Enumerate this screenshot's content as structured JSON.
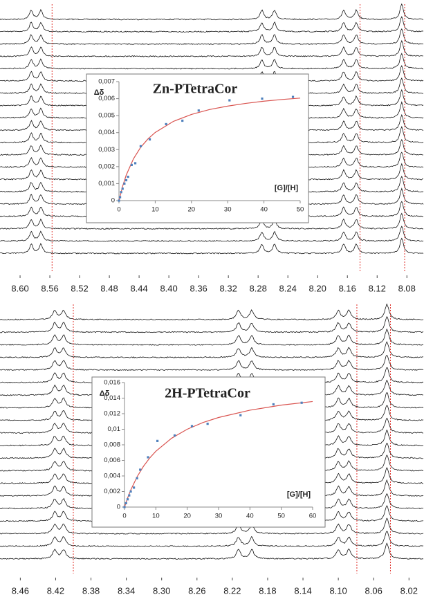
{
  "chart_data": [
    {
      "type": "spectra",
      "xlim": [
        8.627,
        8.057
      ],
      "xticks": [
        {
          "value": 8.6,
          "label": "8.60"
        },
        8.56,
        8.52,
        8.48,
        8.44,
        {
          "value": 8.4,
          "label": "8.40"
        },
        8.36,
        8.32,
        8.28,
        8.24,
        {
          "value": 8.2,
          "label": "8.20"
        },
        8.16,
        8.12,
        8.08
      ],
      "peaks": [
        8.585,
        8.572,
        8.275,
        8.258,
        8.165,
        8.148,
        8.087
      ],
      "reference_lines": [
        8.557,
        8.143,
        8.083
      ],
      "color": "#111111",
      "reference_color": "#e0302a"
    },
    {
      "type": "scatter",
      "title": "Zn-PTetraCor",
      "ylabel": "Δδ",
      "xlabel": "[G]/[H]",
      "xlim": [
        0,
        50
      ],
      "xticks": [
        0,
        10,
        20,
        30,
        40,
        50
      ],
      "ylim": [
        0,
        0.007
      ],
      "yticks": [
        0,
        {
          "value": 0.001,
          "label": "0,001"
        },
        {
          "value": 0.002,
          "label": "0,002"
        },
        {
          "value": 0.003,
          "label": "0,003"
        },
        {
          "value": 0.004,
          "label": "0,004"
        },
        {
          "value": 0.005,
          "label": "0,005"
        },
        {
          "value": 0.006,
          "label": "0,006"
        },
        {
          "value": 0.007,
          "label": "0,007"
        }
      ],
      "points": {
        "color": "#4f81bd",
        "x": [
          0,
          0.3,
          0.6,
          1,
          1.5,
          2,
          2.5,
          3.5,
          4.5,
          6,
          8.5,
          13,
          17.5,
          22,
          30.5,
          39.5,
          48
        ],
        "values": [
          0,
          0.0002,
          0.0005,
          0.0007,
          0.001,
          0.0012,
          0.0014,
          0.0021,
          0.0022,
          0.0032,
          0.0036,
          0.0045,
          0.0047,
          0.0053,
          0.0059,
          0.006,
          0.0061
        ]
      },
      "fit": {
        "color": "#d9534f",
        "x": [
          0,
          1,
          2,
          4,
          6,
          8,
          10,
          15,
          20,
          25,
          30,
          35,
          40,
          45,
          50
        ],
        "values": [
          0,
          0.00084,
          0.0015,
          0.00246,
          0.00314,
          0.00363,
          0.00401,
          0.00466,
          0.00507,
          0.00536,
          0.00556,
          0.00572,
          0.00585,
          0.00595,
          0.00603
        ]
      }
    },
    {
      "type": "spectra",
      "xlim": [
        8.483,
        8.003
      ],
      "xticks": [
        8.46,
        8.42,
        8.38,
        8.34,
        {
          "value": 8.3,
          "label": "8.30"
        },
        8.26,
        8.22,
        8.18,
        8.14,
        {
          "value": 8.1,
          "label": "8.10"
        },
        8.06,
        8.02
      ],
      "peaks": [
        8.421,
        8.411,
        8.213,
        8.198,
        8.1,
        8.088,
        8.045
      ],
      "reference_lines": [
        8.4,
        8.079,
        8.041
      ],
      "color": "#111111",
      "reference_color": "#e0302a"
    },
    {
      "type": "scatter",
      "title": "2H-PTetraCor",
      "ylabel": "Δδ",
      "xlabel": "[G]/[H]",
      "xlim": [
        0,
        60
      ],
      "xticks": [
        0,
        10,
        20,
        30,
        40,
        50,
        60
      ],
      "ylim": [
        0,
        0.016
      ],
      "yticks": [
        0,
        {
          "value": 0.002,
          "label": "0,002"
        },
        {
          "value": 0.004,
          "label": "0,004"
        },
        {
          "value": 0.006,
          "label": "0,006"
        },
        {
          "value": 0.008,
          "label": "0,008"
        },
        {
          "value": 0.01,
          "label": "0,01"
        },
        {
          "value": 0.012,
          "label": "0,012"
        },
        {
          "value": 0.014,
          "label": "0,014"
        },
        {
          "value": 0.016,
          "label": "0,016"
        }
      ],
      "points": {
        "color": "#4f81bd",
        "x": [
          0,
          0.5,
          1,
          1.5,
          2,
          3,
          4,
          5,
          7.5,
          10.5,
          16,
          21.5,
          26.5,
          37,
          47.5,
          56.5
        ],
        "values": [
          0,
          0.0005,
          0.001,
          0.0015,
          0.002,
          0.0025,
          0.0037,
          0.0048,
          0.0064,
          0.0085,
          0.0092,
          0.0104,
          0.0107,
          0.0118,
          0.0132,
          0.0134
        ]
      },
      "fit": {
        "color": "#d9534f",
        "x": [
          0,
          1,
          2,
          4,
          6,
          8,
          10,
          15,
          20,
          25,
          30,
          40,
          50,
          60
        ],
        "values": [
          0,
          0.00118,
          0.0022,
          0.00388,
          0.00521,
          0.00629,
          0.00717,
          0.00884,
          0.01,
          0.01086,
          0.01151,
          0.01245,
          0.0131,
          0.01356
        ]
      }
    }
  ]
}
